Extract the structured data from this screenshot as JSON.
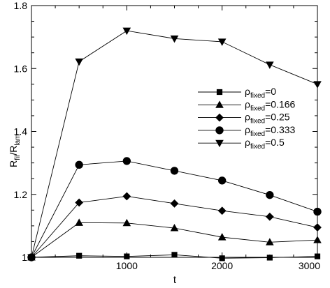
{
  "chart_data": {
    "type": "line",
    "xlabel": "t",
    "ylabel": {
      "base": "R",
      "sub1": "fil",
      "mid": "/R",
      "sub2": "lam"
    },
    "xlim": [
      0,
      3000
    ],
    "ylim": [
      1.0,
      1.8
    ],
    "xticks": [
      1000,
      2000,
      3000
    ],
    "xtick_labels": [
      "1000",
      "2000",
      "3000"
    ],
    "yticks": [
      1.0,
      1.2,
      1.4,
      1.6,
      1.8
    ],
    "ytick_labels": [
      "1",
      "1.2",
      "1.4",
      "1.6",
      "1.8"
    ],
    "grid": false,
    "legend_position": "right-middle",
    "line_color": "#000000",
    "x": [
      0,
      500,
      1000,
      1500,
      2000,
      2500,
      3000
    ],
    "series": [
      {
        "marker": "square",
        "legend": {
          "sym": "ρ",
          "sub": "fixed",
          "val": "=0"
        },
        "values": [
          1.0,
          1.005,
          1.003,
          1.008,
          0.997,
          0.999,
          1.003
        ]
      },
      {
        "marker": "triangle-up",
        "legend": {
          "sym": "ρ",
          "sub": "fixed",
          "val": "=0.166"
        },
        "values": [
          1.0,
          1.11,
          1.109,
          1.093,
          1.064,
          1.048,
          1.055
        ]
      },
      {
        "marker": "diamond",
        "legend": {
          "sym": "ρ",
          "sub": "fixed",
          "val": "=0.25"
        },
        "values": [
          1.0,
          1.174,
          1.194,
          1.171,
          1.148,
          1.129,
          1.095
        ]
      },
      {
        "marker": "circle",
        "legend": {
          "sym": "ρ",
          "sub": "fixed",
          "val": "=0.333"
        },
        "values": [
          1.0,
          1.294,
          1.306,
          1.275,
          1.244,
          1.198,
          1.145
        ]
      },
      {
        "marker": "triangle-down",
        "legend": {
          "sym": "ρ",
          "sub": "fixed",
          "val": "=0.5"
        },
        "values": [
          1.0,
          1.622,
          1.72,
          1.695,
          1.685,
          1.612,
          1.55
        ]
      }
    ]
  }
}
